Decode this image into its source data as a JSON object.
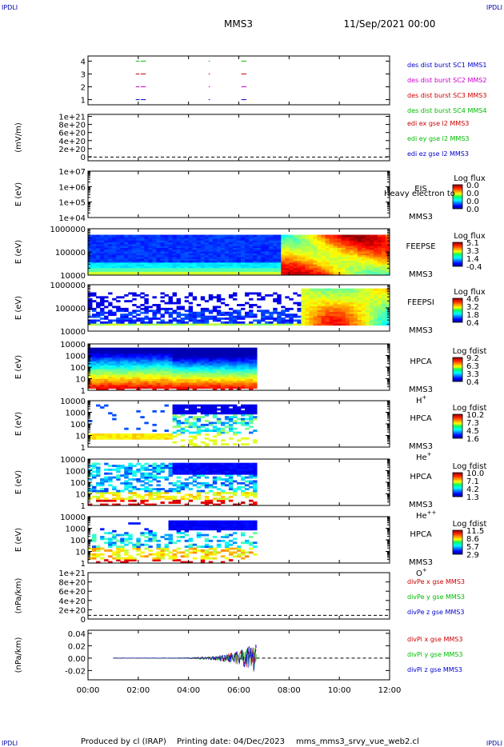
{
  "header": {
    "corner_left": "IPDLI",
    "corner_right": "IPDLI",
    "title": "MMS3",
    "date": "11/Sep/2021 00:00"
  },
  "footer": {
    "corner_left": "IPDLI",
    "corner_right": "IPDLI",
    "produced_by": "Produced by cl (IRAP)",
    "printing_date": "Printing date: 04/Dec/2023",
    "script_name": "mms_mms3_srvy_vue_web2.cl"
  },
  "chart_data": [
    {
      "type": "line",
      "panel": "burst",
      "yticks": [
        "1",
        "2",
        "3",
        "4"
      ],
      "ylim": [
        0.6,
        4.4
      ],
      "legend": [
        {
          "text": "des dist burst SC1 MMS1",
          "color": "#0000cc"
        },
        {
          "text": "des dist burst SC2 MMS2",
          "color": "#cc00cc"
        },
        {
          "text": "des dist burst SC3 MMS3",
          "color": "#cc0000"
        },
        {
          "text": "des dist burst SC4 MMS4",
          "color": "#00bb00"
        }
      ],
      "series": [
        {
          "y": 4,
          "color": "#00bb00",
          "segments": [
            [
              1.9,
              2.05
            ],
            [
              2.1,
              2.3
            ],
            [
              4.8,
              4.85
            ],
            [
              6.1,
              6.3
            ]
          ]
        },
        {
          "y": 3,
          "color": "#cc0000",
          "segments": [
            [
              1.9,
              2.05
            ],
            [
              2.1,
              2.3
            ],
            [
              4.8,
              4.85
            ],
            [
              6.1,
              6.3
            ]
          ]
        },
        {
          "y": 2,
          "color": "#cc00cc",
          "segments": [
            [
              1.9,
              2.05
            ],
            [
              2.1,
              2.3
            ],
            [
              4.8,
              4.85
            ],
            [
              6.1,
              6.3
            ]
          ]
        },
        {
          "y": 1,
          "color": "#0000cc",
          "segments": [
            [
              1.9,
              2.05
            ],
            [
              2.1,
              2.3
            ],
            [
              4.8,
              4.85
            ],
            [
              6.1,
              6.3
            ]
          ]
        }
      ]
    },
    {
      "type": "line",
      "panel": "edi",
      "ylabel": "(mV/m)",
      "yticks": [
        "0",
        "2e+20",
        "4e+20",
        "6e+20",
        "8e+20",
        "1e+21"
      ],
      "ylim": [
        -1e+20,
        1.05e+21
      ],
      "legend": [
        {
          "text": "edi ex gse l2 MMS3",
          "color": "#cc0000"
        },
        {
          "text": "edi ey gse l2 MMS3",
          "color": "#00bb00"
        },
        {
          "text": "edi ez gse l2 MMS3",
          "color": "#0000cc"
        }
      ]
    },
    {
      "type": "heatmap",
      "panel": "eis",
      "ylabel": "E (eV)",
      "yticks": [
        "1e+04",
        "1e+05",
        "1e+06",
        "1e+07"
      ],
      "yscale": "log",
      "side_labels": [
        "EIS",
        "MMS3"
      ],
      "overlap_text": "Heavy electron to",
      "colorbar": {
        "title": "Log flux",
        "ticks": [
          "0.0",
          "0.0",
          "0.0",
          "0.0"
        ]
      }
    },
    {
      "type": "heatmap",
      "panel": "feepse",
      "ylabel": "E (eV)",
      "yticks": [
        "10000",
        "100000",
        "1000000"
      ],
      "yscale": "log",
      "side_labels": [
        "FEEPSE",
        "MMS3"
      ],
      "colorbar": {
        "title": "Log flux",
        "ticks": [
          "5.1",
          "3.3",
          "1.4",
          "-0.4"
        ]
      }
    },
    {
      "type": "heatmap",
      "panel": "feepsi",
      "ylabel": "E (eV)",
      "yticks": [
        "10000",
        "100000",
        "1000000"
      ],
      "yscale": "log",
      "side_labels": [
        "FEEPSI",
        "MMS3"
      ],
      "colorbar": {
        "title": "Log flux",
        "ticks": [
          "4.6",
          "3.2",
          "1.8",
          "0.4"
        ]
      }
    },
    {
      "type": "heatmap",
      "panel": "hpca_h",
      "ylabel": "E (eV)",
      "yticks": [
        "1",
        "10",
        "100",
        "1000",
        "10000"
      ],
      "yscale": "log",
      "side_labels": [
        "HPCA",
        "MMS3"
      ],
      "species": "H",
      "species_sup": "+",
      "colorbar": {
        "title": "Log fdist",
        "ticks": [
          "9.2",
          "6.3",
          "3.3",
          "0.4"
        ]
      }
    },
    {
      "type": "heatmap",
      "panel": "hpca_he",
      "ylabel": "E (eV)",
      "yticks": [
        "1",
        "10",
        "100",
        "1000",
        "10000"
      ],
      "yscale": "log",
      "side_labels": [
        "HPCA",
        "MMS3"
      ],
      "species": "He",
      "species_sup": "+",
      "colorbar": {
        "title": "Log fdist",
        "ticks": [
          "10.2",
          "7.3",
          "4.5",
          "1.6"
        ]
      }
    },
    {
      "type": "heatmap",
      "panel": "hpca_he2",
      "ylabel": "E (eV)",
      "yticks": [
        "1",
        "10",
        "100",
        "1000",
        "10000"
      ],
      "yscale": "log",
      "side_labels": [
        "HPCA",
        "MMS3"
      ],
      "species": "He",
      "species_sup": "++",
      "colorbar": {
        "title": "Log fdist",
        "ticks": [
          "10.0",
          "7.1",
          "4.2",
          "1.3"
        ]
      }
    },
    {
      "type": "heatmap",
      "panel": "hpca_o",
      "ylabel": "E (eV)",
      "yticks": [
        "1",
        "10",
        "100",
        "1000",
        "10000"
      ],
      "yscale": "log",
      "side_labels": [
        "HPCA",
        "MMS3"
      ],
      "species": "O",
      "species_sup": "+",
      "colorbar": {
        "title": "Log fdist",
        "ticks": [
          "11.5",
          "8.6",
          "5.7",
          "2.9"
        ]
      }
    },
    {
      "type": "line",
      "panel": "divpe",
      "ylabel": "(nPa/km)",
      "yticks": [
        "0",
        "2e+20",
        "4e+20",
        "6e+20",
        "8e+20",
        "1e+21"
      ],
      "legend": [
        {
          "text": "divPe x gse MMS3",
          "color": "#cc0000"
        },
        {
          "text": "divPe y gse MMS3",
          "color": "#00bb00"
        },
        {
          "text": "divPe z gse MMS3",
          "color": "#0000cc"
        }
      ]
    },
    {
      "type": "line",
      "panel": "divpi",
      "ylabel": "(nPa/km)",
      "yticks": [
        "-0.02",
        "0.00",
        "0.02",
        "0.04"
      ],
      "ylim": [
        -0.035,
        0.045
      ],
      "legend": [
        {
          "text": "divPi x gse MMS3",
          "color": "#cc0000"
        },
        {
          "text": "divPi y gse MMS3",
          "color": "#00bb00"
        },
        {
          "text": "divPi z gse MMS3",
          "color": "#0000cc"
        }
      ]
    }
  ],
  "time_axis": {
    "xlim": [
      0,
      12
    ],
    "ticks": [
      "00:00",
      "02:00",
      "04:00",
      "06:00",
      "08:00",
      "10:00",
      "12:00"
    ],
    "data_end": 6.7
  }
}
